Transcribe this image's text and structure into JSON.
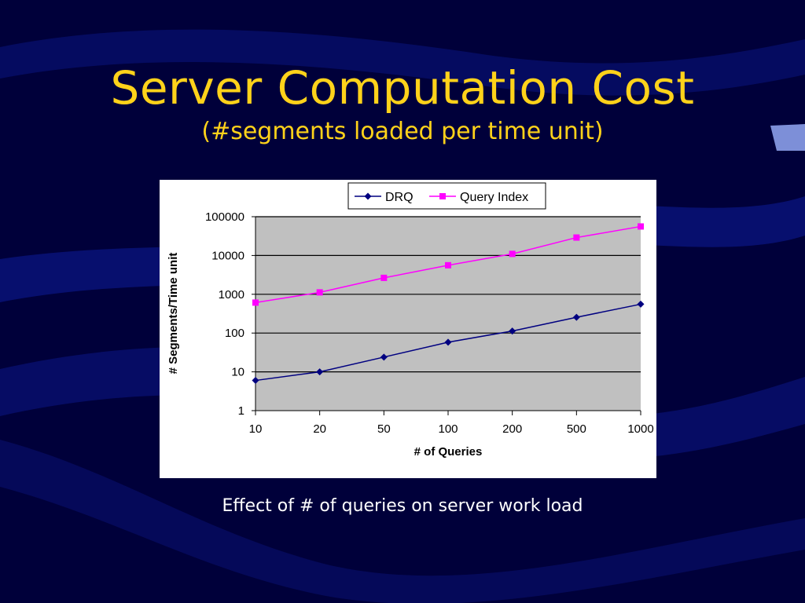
{
  "slide": {
    "title": "Server Computation Cost",
    "subtitle": "(#segments loaded per time unit)",
    "caption": "Effect of # of queries on server work load"
  },
  "colors": {
    "background": "#00003a",
    "title": "#ffd21a",
    "plot_area": "#c0c0c0",
    "drq": "#000080",
    "query_index": "#ff00ff"
  },
  "chart_data": {
    "type": "line",
    "title": "",
    "xlabel": "# of Queries",
    "ylabel": "# Segments/Time unit",
    "categories": [
      "10",
      "20",
      "50",
      "100",
      "200",
      "500",
      "1000"
    ],
    "y_scale": "log",
    "ylim": [
      1,
      100000
    ],
    "y_ticks": [
      "1",
      "10",
      "100",
      "1000",
      "10000",
      "100000"
    ],
    "grid": true,
    "legend_position": "top",
    "series": [
      {
        "name": "DRQ",
        "marker": "diamond",
        "color": "#000080",
        "values": [
          6,
          10,
          24,
          58,
          113,
          255,
          555
        ]
      },
      {
        "name": "Query Index",
        "marker": "square",
        "color": "#ff00ff",
        "values": [
          610,
          1120,
          2650,
          5600,
          11000,
          29000,
          56000
        ]
      }
    ]
  }
}
